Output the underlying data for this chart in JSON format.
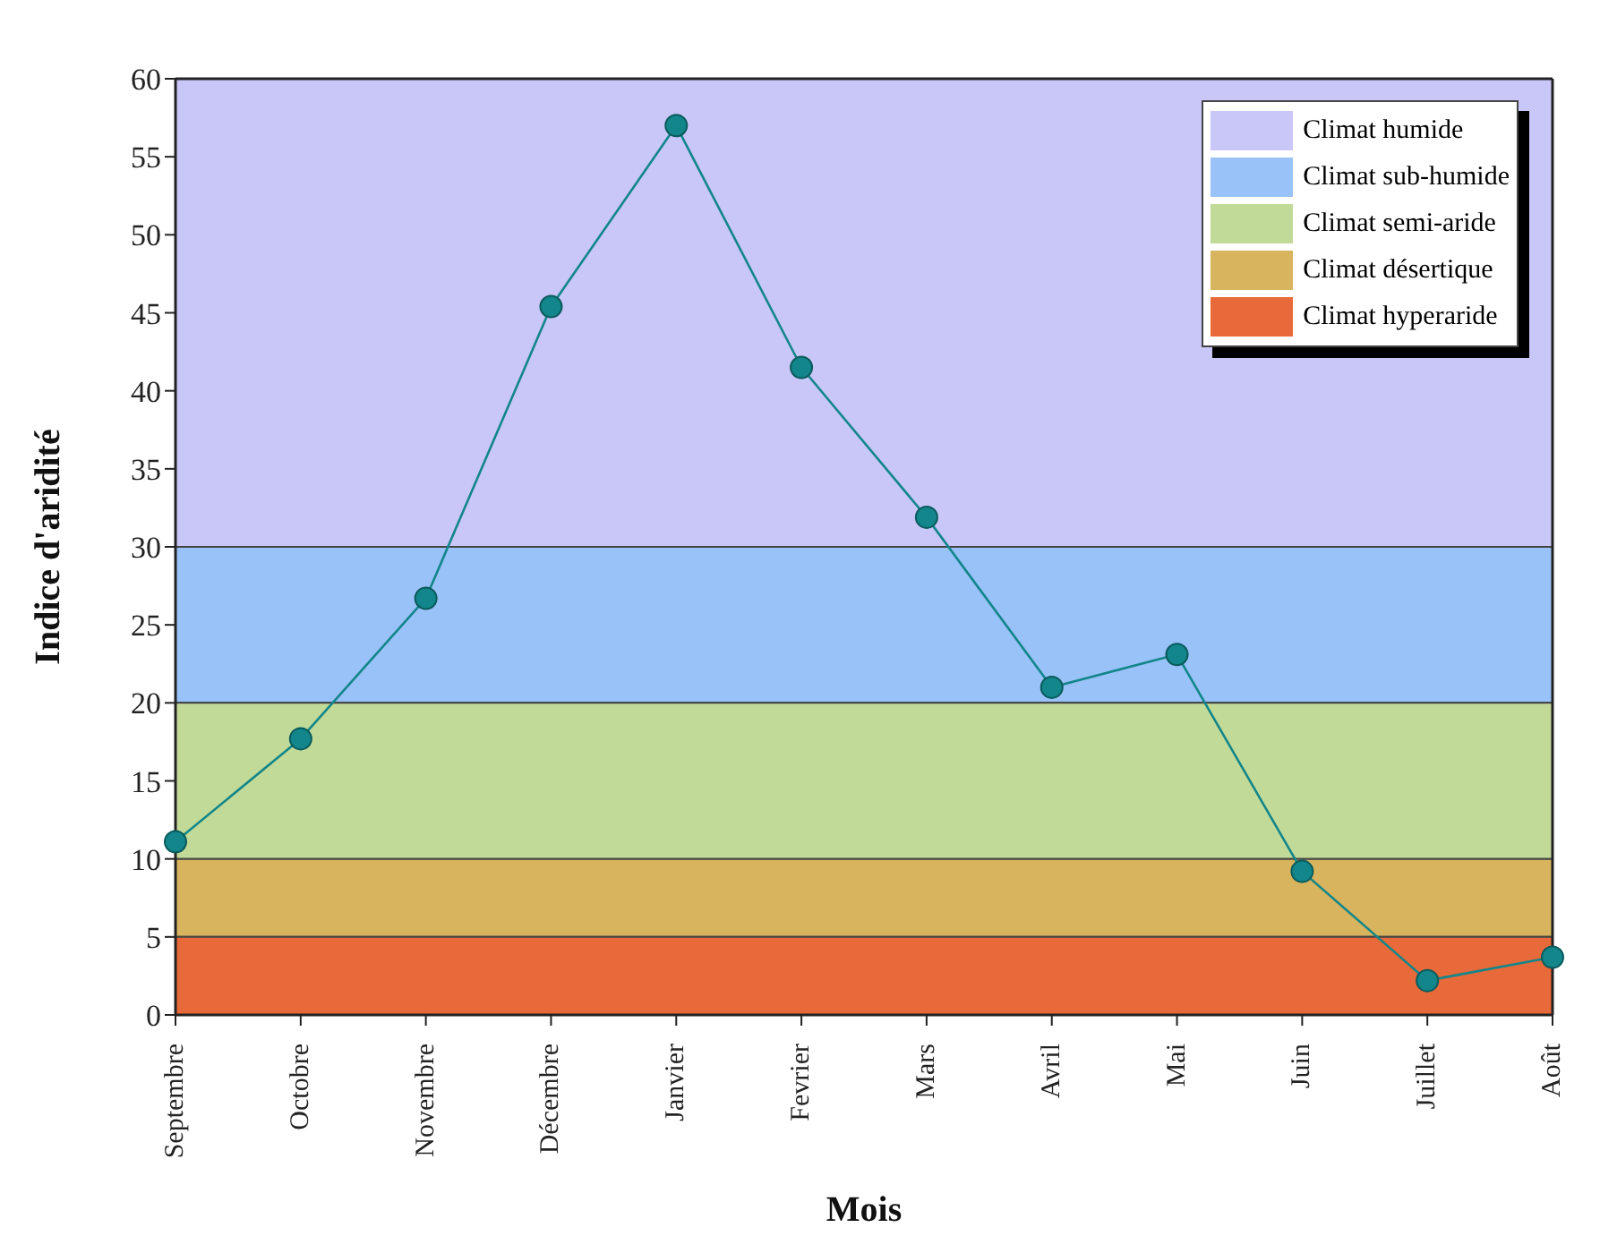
{
  "chart_data": {
    "type": "line",
    "xlabel": "Mois",
    "ylabel": "Indice d'aridité",
    "categories": [
      "Septembre",
      "Octobre",
      "Novembre",
      "Décembre",
      "Janvier",
      "Fevrier",
      "Mars",
      "Avril",
      "Mai",
      "Juin",
      "Juillet",
      "Août"
    ],
    "series": [
      {
        "color": "#12868a",
        "values": [
          11.1,
          17.7,
          26.7,
          45.4,
          57,
          41.5,
          31.9,
          21,
          23.1,
          9.2,
          2.2,
          3.7
        ]
      }
    ],
    "ylim": [
      0,
      60
    ],
    "yticks": [
      0,
      5,
      10,
      15,
      20,
      25,
      30,
      35,
      40,
      45,
      50,
      55,
      60
    ],
    "bands": [
      {
        "axis": "y",
        "from": 30,
        "to": 60,
        "label": "Climat humide",
        "color": "#c9c6f8"
      },
      {
        "axis": "y",
        "from": 20,
        "to": 30,
        "label": "Climat sub-humide",
        "color": "#99c2f8"
      },
      {
        "axis": "y",
        "from": 10,
        "to": 20,
        "label": "Climat semi-aride",
        "color": "#c2da98"
      },
      {
        "axis": "y",
        "from": 5,
        "to": 10,
        "label": "Climat désertique",
        "color": "#d9b45e"
      },
      {
        "axis": "y",
        "from": 0,
        "to": 5,
        "label": "Climat hyperaride",
        "color": "#e8693a"
      }
    ],
    "legend": "top right",
    "marker": "circle",
    "line_style": "solid"
  }
}
